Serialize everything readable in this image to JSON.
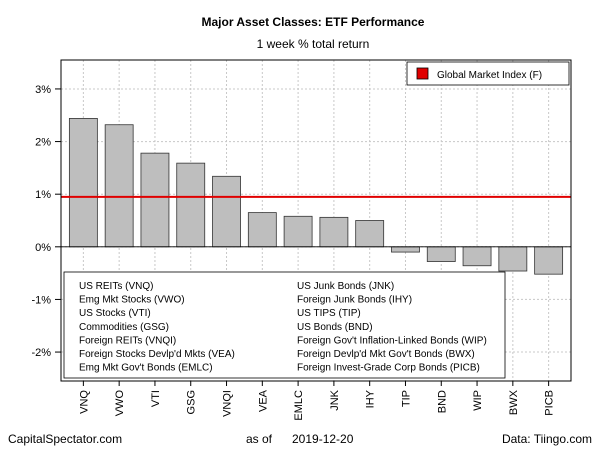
{
  "chart_data": {
    "type": "bar",
    "title": "Major Asset Classes: ETF Performance",
    "subtitle": "1 week % total return",
    "categories": [
      "VNQ",
      "VWO",
      "VTI",
      "GSG",
      "VNQI",
      "VEA",
      "EMLC",
      "JNK",
      "IHY",
      "TIP",
      "BND",
      "WIP",
      "BWX",
      "PICB"
    ],
    "values": [
      2.44,
      2.32,
      1.78,
      1.59,
      1.34,
      0.65,
      0.58,
      0.56,
      0.5,
      -0.1,
      -0.28,
      -0.36,
      -0.46,
      -0.52
    ],
    "ylim": [
      -2.55,
      3.55
    ],
    "yticks": [
      -2,
      -1,
      0,
      1,
      2,
      3
    ],
    "ytick_labels": [
      "-2%",
      "-1%",
      "0%",
      "1%",
      "2%",
      "3%"
    ],
    "grid": true,
    "reference_line": {
      "label": "Global Market Index (F)",
      "value": 0.95,
      "color": "#e00000"
    },
    "bar_color": "#bebebe",
    "legend_position": "top-right",
    "key_box_left": [
      "US REITs (VNQ)",
      "Emg Mkt Stocks (VWO)",
      "US Stocks (VTI)",
      "Commodities (GSG)",
      "Foreign REITs (VNQI)",
      "Foreign Stocks Devlp'd Mkts (VEA)",
      "Emg Mkt Gov't Bonds (EMLC)"
    ],
    "key_box_right": [
      "US Junk Bonds (JNK)",
      "Foreign Junk Bonds (IHY)",
      "US TIPS (TIP)",
      "US Bonds (BND)",
      "Foreign Gov't Inflation-Linked Bonds (WIP)",
      "Foreign Devlp'd Mkt Gov't Bonds (BWX)",
      "Foreign Invest-Grade Corp Bonds (PICB)"
    ]
  },
  "footer": {
    "left": "CapitalSpectator.com",
    "as_of_label": "as of",
    "date": "2019-12-20",
    "right": "Data: Tiingo.com"
  }
}
